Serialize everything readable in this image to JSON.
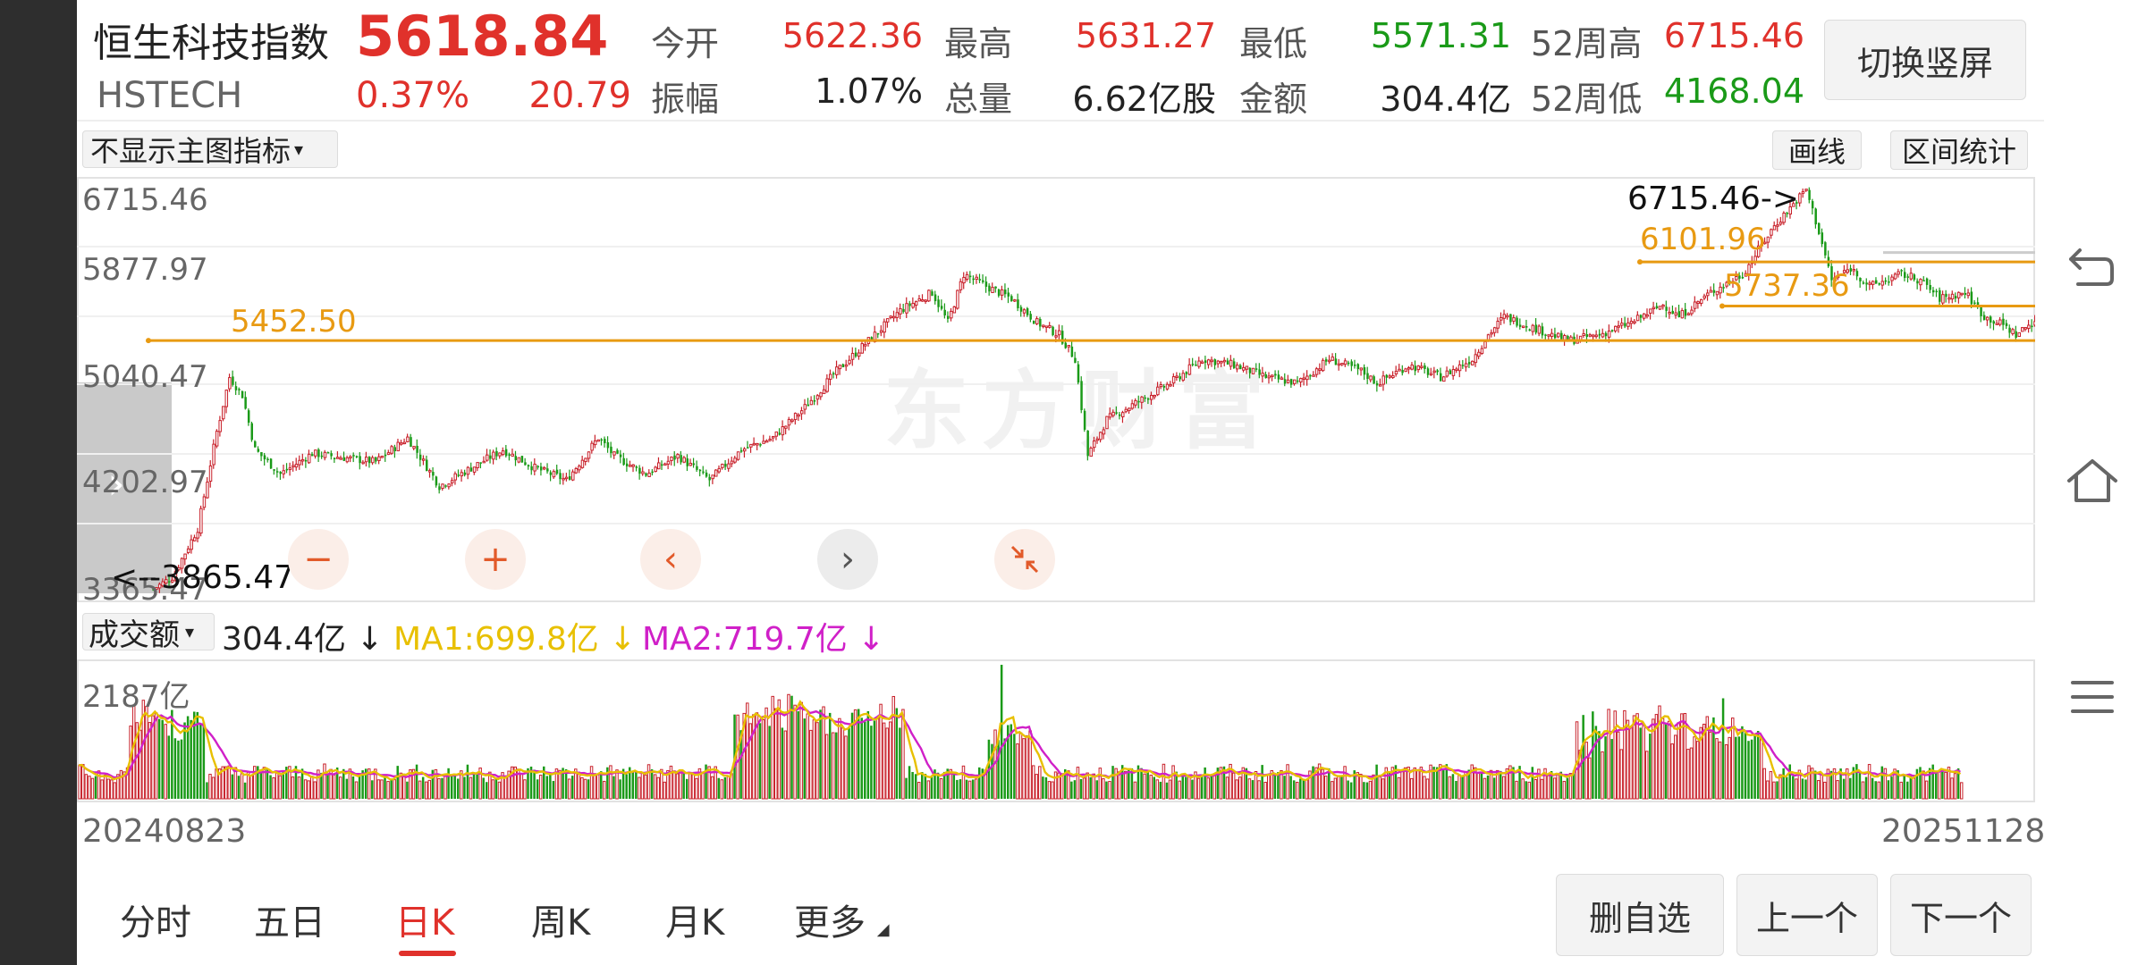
{
  "header": {
    "name": "恒生科技指数",
    "code": "HSTECH",
    "price": "5618.84",
    "change_pct": "0.37%",
    "change": "20.79",
    "switch_button": "切换竖屏"
  },
  "quote": {
    "open_label": "今开",
    "open": "5622.36",
    "high_label": "最高",
    "high": "5631.27",
    "low_label": "最低",
    "low": "5571.31",
    "w52h_label": "52周高",
    "w52h": "6715.46",
    "amp_label": "振幅",
    "amp": "1.07%",
    "vol_label": "总量",
    "vol": "6.62亿股",
    "amt_label": "金额",
    "amt": "304.4亿",
    "w52l_label": "52周低",
    "w52l": "4168.04"
  },
  "toolbar": {
    "indicator_select": "不显示主图指标",
    "draw_button": "画线",
    "range_stats_button": "区间统计"
  },
  "chart_data": {
    "type": "candlestick",
    "y_ticks": [
      "6715.46",
      "5877.97",
      "5040.47",
      "4202.97",
      "3365.47"
    ],
    "annotations": {
      "high_marker": "6715.46->",
      "low_marker": "<--3865.47",
      "levels": [
        "5452.50",
        "6101.96",
        "5737.36"
      ]
    },
    "date_start": "20240823",
    "date_end": "20251128",
    "watermark": "东方财富",
    "volume": {
      "indicator_select": "成交额",
      "current": "304.4亿 ↓",
      "ma1": "MA1:699.8亿 ↓",
      "ma2": "MA2:719.7亿 ↓",
      "max_tick": "2187亿"
    }
  },
  "zoom_controls": [
    "zoom-out",
    "zoom-in",
    "prev",
    "next",
    "collapse"
  ],
  "tabs": [
    "分时",
    "五日",
    "日K",
    "周K",
    "月K",
    "更多"
  ],
  "active_tab": "日K",
  "bottom_buttons": {
    "remove": "删自选",
    "prev": "上一个",
    "next": "下一个"
  },
  "right_nav_icons": [
    "back-icon",
    "home-icon",
    "menu-icon"
  ],
  "colors": {
    "up": "#c8202a",
    "down": "#1a9a18",
    "accent": "#e0312b",
    "level_line": "#e89a12",
    "ma1": "#e8c000",
    "ma2": "#d020c8"
  }
}
